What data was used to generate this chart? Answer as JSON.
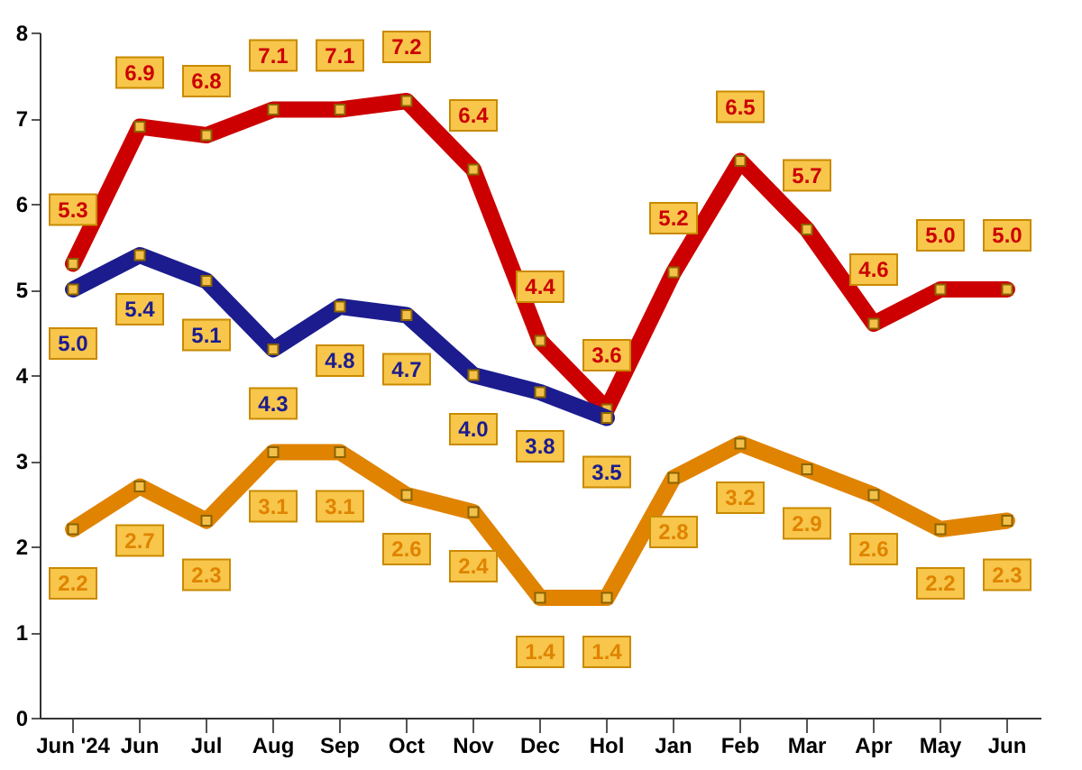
{
  "chart_data": {
    "type": "line",
    "categories": [
      "Jun '24",
      "Jun",
      "Jul",
      "Aug",
      "Sep",
      "Oct",
      "Nov",
      "Dec",
      "Hol",
      "Jan",
      "Feb",
      "Mar",
      "Apr",
      "May",
      "Jun"
    ],
    "series": [
      {
        "color": "#cc0000",
        "values": [
          5.3,
          6.9,
          6.8,
          7.1,
          7.1,
          7.2,
          6.4,
          4.4,
          3.6,
          5.2,
          6.5,
          5.7,
          4.6,
          5.0,
          5.0
        ],
        "value_labels": [
          "5.3",
          "6.9",
          "6.8",
          "7.1",
          "7.1",
          "7.2",
          "6.4",
          "4.4",
          "3.6",
          "5.2",
          "6.5",
          "5.7",
          "4.6",
          "5.0",
          "5.0"
        ]
      },
      {
        "color": "#1c1c8f",
        "values": [
          5.0,
          5.4,
          5.1,
          4.3,
          4.8,
          4.7,
          4.0,
          3.8,
          3.5,
          null,
          null,
          null,
          null,
          null,
          null
        ],
        "value_labels": [
          "5.0",
          "5.4",
          "5.1",
          "4.3",
          "4.8",
          "4.7",
          "4.0",
          "3.8",
          "3.5",
          null,
          null,
          null,
          null,
          null,
          null
        ]
      },
      {
        "color": "#e08300",
        "values": [
          2.2,
          2.7,
          2.3,
          3.1,
          3.1,
          2.6,
          2.4,
          1.4,
          1.4,
          2.8,
          3.2,
          2.9,
          2.6,
          2.2,
          2.3
        ],
        "value_labels": [
          "2.2",
          "2.7",
          "2.3",
          "3.1",
          "3.1",
          "2.6",
          "2.4",
          "1.4",
          "1.4",
          "2.8",
          "3.2",
          "2.9",
          "2.6",
          "2.2",
          "2.3"
        ]
      }
    ],
    "ylim": [
      0,
      8
    ],
    "yticks": [
      0,
      1,
      2,
      3,
      4,
      5,
      6,
      7,
      8
    ],
    "grid": false,
    "marker": "square",
    "line_style": "solid"
  }
}
